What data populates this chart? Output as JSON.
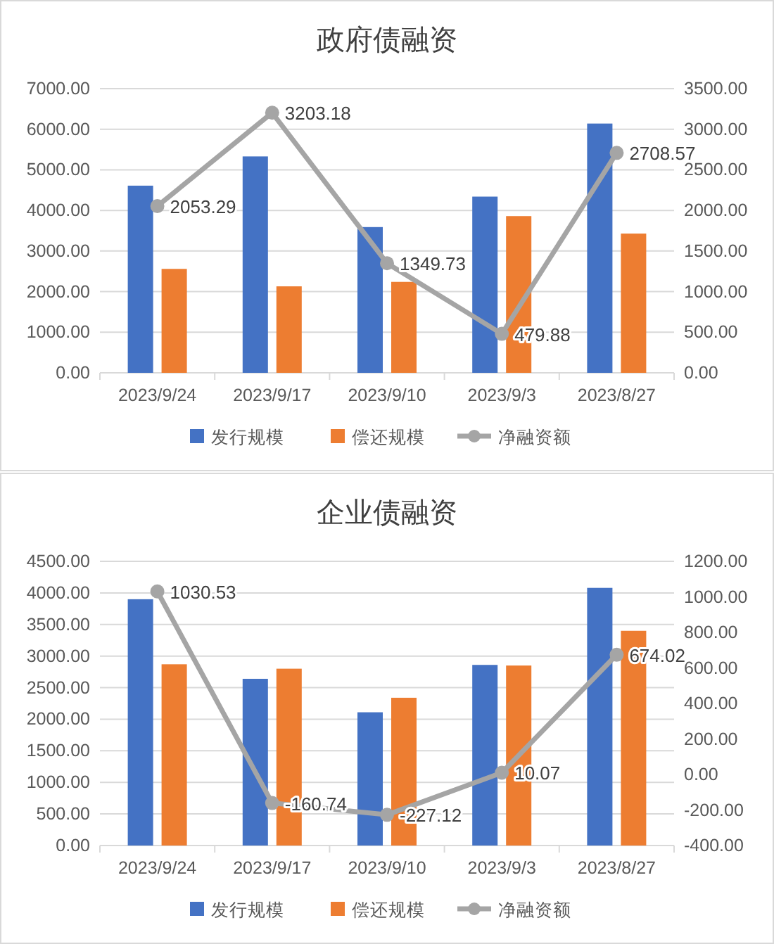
{
  "chart_data": [
    {
      "type": "bar",
      "title": "政府债融资",
      "categories": [
        "2023/9/24",
        "2023/9/17",
        "2023/9/10",
        "2023/9/3",
        "2023/8/27"
      ],
      "series": [
        {
          "name": "发行规模",
          "color": "#4472c4",
          "values": [
            4610,
            5330,
            3590,
            4340,
            6140
          ]
        },
        {
          "name": "偿还规模",
          "color": "#ed7d31",
          "values": [
            2560,
            2130,
            2240,
            3860,
            3430
          ]
        },
        {
          "name": "净融资额",
          "type": "line",
          "axis": "y2",
          "color": "#a5a5a5",
          "values": [
            2053.29,
            3203.18,
            1349.73,
            479.88,
            2708.57
          ],
          "value_labels": [
            "2053.29",
            "3203.18",
            "1349.73",
            "479.88",
            "2708.57"
          ]
        }
      ],
      "ylim": [
        0,
        7000
      ],
      "yticks": [
        {
          "value": 0,
          "label": "0.00"
        },
        {
          "value": 1000,
          "label": "1000.00"
        },
        {
          "value": 2000,
          "label": "2000.00"
        },
        {
          "value": 3000,
          "label": "3000.00"
        },
        {
          "value": 4000,
          "label": "4000.00"
        },
        {
          "value": 5000,
          "label": "5000.00"
        },
        {
          "value": 6000,
          "label": "6000.00"
        },
        {
          "value": 7000,
          "label": "7000.00"
        }
      ],
      "y2lim": [
        0,
        3500
      ],
      "y2ticks": [
        {
          "value": 0,
          "label": "0.00"
        },
        {
          "value": 500,
          "label": "500.00"
        },
        {
          "value": 1000,
          "label": "1000.00"
        },
        {
          "value": 1500,
          "label": "1500.00"
        },
        {
          "value": 2000,
          "label": "2000.00"
        },
        {
          "value": 2500,
          "label": "2500.00"
        },
        {
          "value": 3000,
          "label": "3000.00"
        },
        {
          "value": 3500,
          "label": "3500.00"
        }
      ],
      "grid": "y",
      "legend": "bottom",
      "marker": "circle"
    },
    {
      "type": "bar",
      "title": "企业债融资",
      "categories": [
        "2023/9/24",
        "2023/9/17",
        "2023/9/10",
        "2023/9/3",
        "2023/8/27"
      ],
      "series": [
        {
          "name": "发行规模",
          "color": "#4472c4",
          "values": [
            3900,
            2640,
            2110,
            2860,
            4080
          ]
        },
        {
          "name": "偿还规模",
          "color": "#ed7d31",
          "values": [
            2870,
            2800,
            2340,
            2850,
            3400
          ]
        },
        {
          "name": "净融资额",
          "type": "line",
          "axis": "y2",
          "color": "#a5a5a5",
          "values": [
            1030.53,
            -160.74,
            -227.12,
            10.07,
            674.02
          ],
          "value_labels": [
            "1030.53",
            "-160.74",
            "-227.12",
            "10.07",
            "674.02"
          ]
        }
      ],
      "ylim": [
        0,
        4500
      ],
      "yticks": [
        {
          "value": 0,
          "label": "0.00"
        },
        {
          "value": 500,
          "label": "500.00"
        },
        {
          "value": 1000,
          "label": "1000.00"
        },
        {
          "value": 1500,
          "label": "1500.00"
        },
        {
          "value": 2000,
          "label": "2000.00"
        },
        {
          "value": 2500,
          "label": "2500.00"
        },
        {
          "value": 3000,
          "label": "3000.00"
        },
        {
          "value": 3500,
          "label": "3500.00"
        },
        {
          "value": 4000,
          "label": "4000.00"
        },
        {
          "value": 4500,
          "label": "4500.00"
        }
      ],
      "y2lim": [
        -400,
        1200
      ],
      "y2ticks": [
        {
          "value": -400,
          "label": "-400.00"
        },
        {
          "value": -200,
          "label": "-200.00"
        },
        {
          "value": 0,
          "label": "0.00"
        },
        {
          "value": 200,
          "label": "200.00"
        },
        {
          "value": 400,
          "label": "400.00"
        },
        {
          "value": 600,
          "label": "600.00"
        },
        {
          "value": 800,
          "label": "800.00"
        },
        {
          "value": 1000,
          "label": "1000.00"
        },
        {
          "value": 1200,
          "label": "1200.00"
        }
      ],
      "grid": "y",
      "legend": "bottom",
      "marker": "circle"
    }
  ]
}
